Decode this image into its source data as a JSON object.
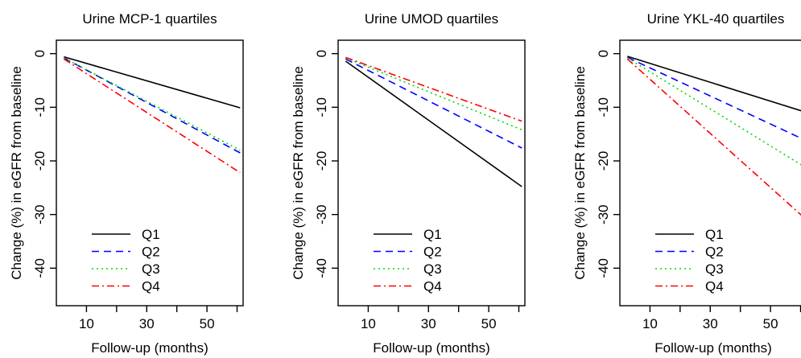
{
  "chart_data": [
    {
      "type": "line",
      "title": "Urine MCP-1 quartiles",
      "xlabel": "Follow-up (months)",
      "ylabel": "Change (%) in eGFR from baseline",
      "xlim": [
        0,
        62
      ],
      "ylim": [
        -47,
        2.5
      ],
      "xticks": [
        10,
        20,
        30,
        40,
        50,
        60
      ],
      "xtick_labels": [
        "10",
        "",
        "30",
        "",
        "50",
        ""
      ],
      "yticks": [
        0,
        -10,
        -20,
        -30,
        -40
      ],
      "ytick_labels": [
        "0",
        "-10",
        "-20",
        "-30",
        "-40"
      ],
      "legend_position": "bottom-left",
      "grid": false,
      "series": [
        {
          "name": "Q1",
          "color": "#000000",
          "dash": "solid",
          "x": [
            2.5,
            61
          ],
          "y": [
            -0.6,
            -10.1
          ]
        },
        {
          "name": "Q2",
          "color": "#0000ff",
          "dash": "dashed",
          "x": [
            2.5,
            61
          ],
          "y": [
            -0.8,
            -18.5
          ]
        },
        {
          "name": "Q3",
          "color": "#00dd00",
          "dash": "dotted",
          "x": [
            2.5,
            61
          ],
          "y": [
            -0.8,
            -18.0
          ]
        },
        {
          "name": "Q4",
          "color": "#ff0000",
          "dash": "dashdot",
          "x": [
            2.5,
            61
          ],
          "y": [
            -1.0,
            -22.2
          ]
        }
      ]
    },
    {
      "type": "line",
      "title": "Urine UMOD quartiles",
      "xlabel": "Follow-up (months)",
      "ylabel": "Change (%) in eGFR from baseline",
      "xlim": [
        0,
        62
      ],
      "ylim": [
        -47,
        2.5
      ],
      "xticks": [
        10,
        20,
        30,
        40,
        50,
        60
      ],
      "xtick_labels": [
        "10",
        "",
        "30",
        "",
        "50",
        ""
      ],
      "yticks": [
        0,
        -10,
        -20,
        -30,
        -40
      ],
      "ytick_labels": [
        "0",
        "-10",
        "-20",
        "-30",
        "-40"
      ],
      "legend_position": "bottom-left",
      "grid": false,
      "series": [
        {
          "name": "Q1",
          "color": "#000000",
          "dash": "solid",
          "x": [
            2.5,
            61
          ],
          "y": [
            -1.4,
            -24.8
          ]
        },
        {
          "name": "Q2",
          "color": "#0000ff",
          "dash": "dashed",
          "x": [
            2.5,
            61
          ],
          "y": [
            -1.0,
            -17.6
          ]
        },
        {
          "name": "Q3",
          "color": "#00dd00",
          "dash": "dotted",
          "x": [
            2.5,
            61
          ],
          "y": [
            -0.8,
            -14.2
          ]
        },
        {
          "name": "Q4",
          "color": "#ff0000",
          "dash": "dashdot",
          "x": [
            2.5,
            61
          ],
          "y": [
            -0.7,
            -12.6
          ]
        }
      ]
    },
    {
      "type": "line",
      "title": "Urine YKL-40 quartiles",
      "xlabel": "Follow-up (months)",
      "ylabel": "Change (%) in eGFR from baseline",
      "xlim": [
        0,
        62
      ],
      "ylim": [
        -47,
        2.5
      ],
      "xticks": [
        10,
        20,
        30,
        40,
        50,
        60
      ],
      "xtick_labels": [
        "10",
        "",
        "30",
        "",
        "50",
        ""
      ],
      "yticks": [
        0,
        -10,
        -20,
        -30,
        -40
      ],
      "ytick_labels": [
        "0",
        "-10",
        "-20",
        "-30",
        "-40"
      ],
      "legend_position": "bottom-left",
      "grid": false,
      "series": [
        {
          "name": "Q1",
          "color": "#000000",
          "dash": "solid",
          "x": [
            2.5,
            61
          ],
          "y": [
            -0.5,
            -10.8
          ]
        },
        {
          "name": "Q2",
          "color": "#0000ff",
          "dash": "dashed",
          "x": [
            2.5,
            61
          ],
          "y": [
            -0.7,
            -16.0
          ]
        },
        {
          "name": "Q3",
          "color": "#00dd00",
          "dash": "dotted",
          "x": [
            2.5,
            61
          ],
          "y": [
            -0.8,
            -21.0
          ]
        },
        {
          "name": "Q4",
          "color": "#ff0000",
          "dash": "dashdot",
          "x": [
            2.5,
            61
          ],
          "y": [
            -1.0,
            -30.5
          ]
        }
      ]
    }
  ]
}
